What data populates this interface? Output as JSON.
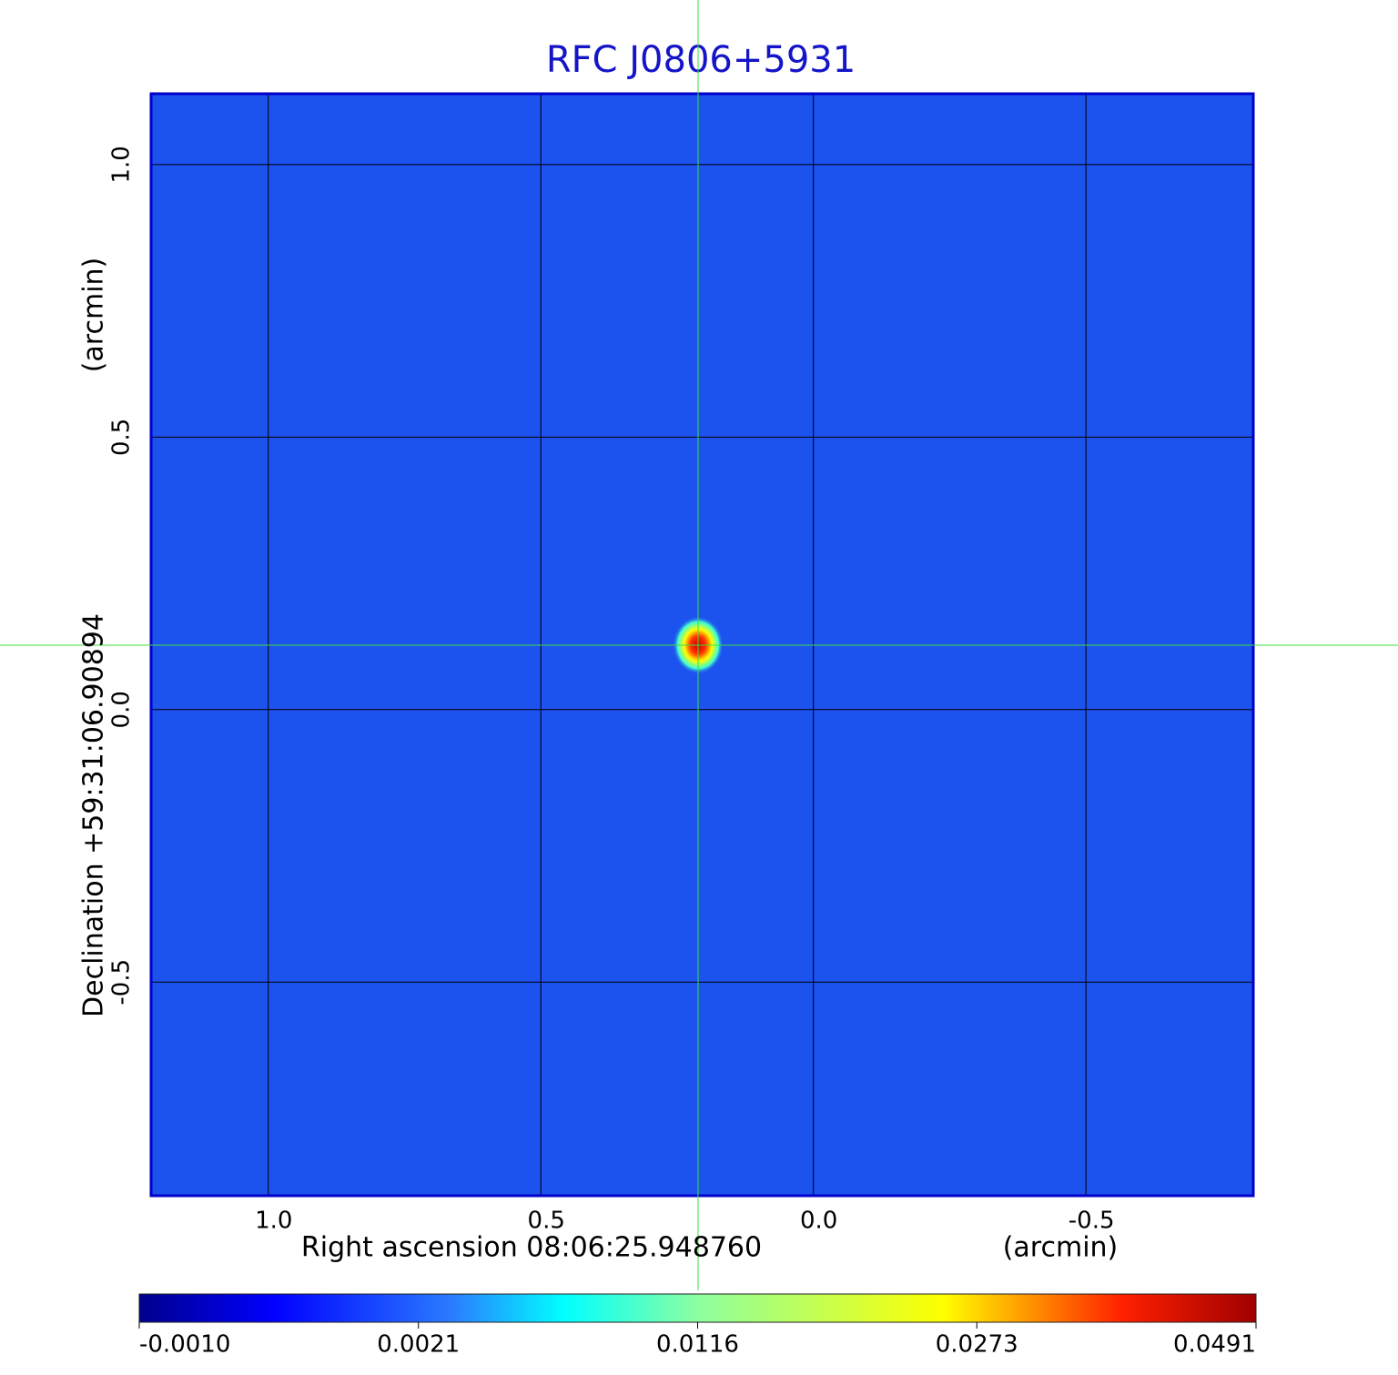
{
  "chart_data": {
    "type": "image",
    "title": "RFC J0806+5931",
    "xlabel": "Right ascension  08:06:25.948760",
    "xunit": "(arcmin)",
    "ylabel": "Declination  +59:31:06.90894",
    "yunit": "(arcmin)",
    "xlim": [
      1.215,
      -0.807
    ],
    "ylim": [
      -0.892,
      1.13
    ],
    "xticks": [
      {
        "value": 1,
        "label": "1.0"
      },
      0.5,
      {
        "value": 0,
        "label": "0.0"
      },
      -0.5
    ],
    "yticks": [
      {
        "value": 1,
        "label": "1.0"
      },
      0.5,
      {
        "value": 0,
        "label": "0.0"
      },
      -0.5
    ],
    "grid": true,
    "colorbar_ticks": [
      {
        "value": -0.001,
        "label": "-0.0010"
      },
      {
        "value": 0.0021,
        "label": "0.0021"
      },
      {
        "value": 0.0116,
        "label": "0.0116"
      },
      {
        "value": 0.0273,
        "label": "0.0273"
      },
      {
        "value": 0.0491,
        "label": "0.0491"
      }
    ]
  }
}
